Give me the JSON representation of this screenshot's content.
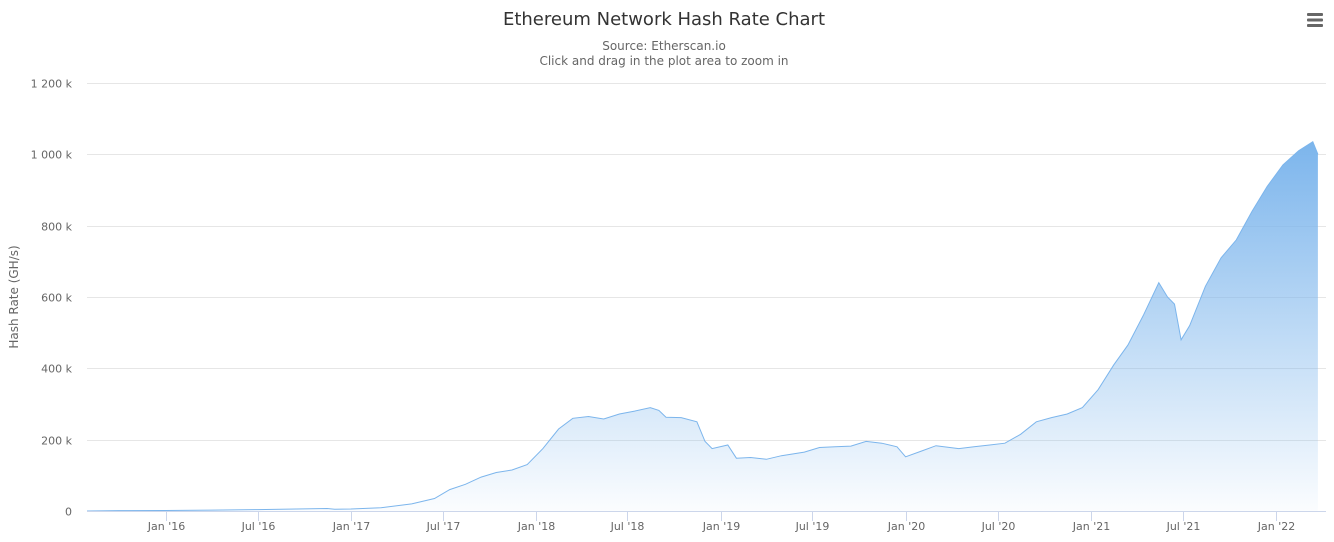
{
  "chart_data": {
    "type": "area",
    "title": "Ethereum Network Hash Rate Chart",
    "subtitle_lines": [
      "Source: Etherscan.io",
      "Click and drag in the plot area to zoom in"
    ],
    "ylabel": "Hash Rate (GH/s)",
    "xlabel": "",
    "ylim": [
      0,
      1200000
    ],
    "xlim": [
      "2015-07-30",
      "2022-04-10"
    ],
    "y_ticks": [
      {
        "value": 0,
        "label": "0"
      },
      {
        "value": 200000,
        "label": "200 k"
      },
      {
        "value": 400000,
        "label": "400 k"
      },
      {
        "value": 600000,
        "label": "600 k"
      },
      {
        "value": 800000,
        "label": "800 k"
      },
      {
        "value": 1000000,
        "label": "1 000 k"
      },
      {
        "value": 1200000,
        "label": "1 200 k"
      }
    ],
    "x_ticks": [
      {
        "date": "2016-01-01",
        "label": "Jan '16"
      },
      {
        "date": "2016-07-01",
        "label": "Jul '16"
      },
      {
        "date": "2017-01-01",
        "label": "Jan '17"
      },
      {
        "date": "2017-07-01",
        "label": "Jul '17"
      },
      {
        "date": "2018-01-01",
        "label": "Jan '18"
      },
      {
        "date": "2018-07-01",
        "label": "Jul '18"
      },
      {
        "date": "2019-01-01",
        "label": "Jan '19"
      },
      {
        "date": "2019-07-01",
        "label": "Jul '19"
      },
      {
        "date": "2020-01-01",
        "label": "Jan '20"
      },
      {
        "date": "2020-07-01",
        "label": "Jul '20"
      },
      {
        "date": "2021-01-01",
        "label": "Jan '21"
      },
      {
        "date": "2021-07-01",
        "label": "Jul '21"
      },
      {
        "date": "2022-01-01",
        "label": "Jan '22"
      }
    ],
    "series": [
      {
        "name": "Hash Rate",
        "color": "#7cb5ec",
        "points": [
          [
            "2015-07-30",
            0
          ],
          [
            "2015-10-01",
            1000
          ],
          [
            "2016-01-01",
            1500
          ],
          [
            "2016-04-01",
            2500
          ],
          [
            "2016-07-01",
            4000
          ],
          [
            "2016-10-01",
            6000
          ],
          [
            "2016-11-15",
            7000
          ],
          [
            "2016-11-30",
            5000
          ],
          [
            "2017-01-01",
            5500
          ],
          [
            "2017-03-01",
            9000
          ],
          [
            "2017-05-01",
            20000
          ],
          [
            "2017-06-15",
            35000
          ],
          [
            "2017-07-15",
            60000
          ],
          [
            "2017-08-15",
            75000
          ],
          [
            "2017-09-15",
            95000
          ],
          [
            "2017-10-15",
            108000
          ],
          [
            "2017-11-15",
            115000
          ],
          [
            "2017-12-15",
            130000
          ],
          [
            "2018-01-15",
            175000
          ],
          [
            "2018-02-15",
            230000
          ],
          [
            "2018-03-15",
            260000
          ],
          [
            "2018-04-15",
            265000
          ],
          [
            "2018-05-15",
            258000
          ],
          [
            "2018-06-15",
            272000
          ],
          [
            "2018-07-15",
            280000
          ],
          [
            "2018-08-15",
            290000
          ],
          [
            "2018-09-01",
            282000
          ],
          [
            "2018-09-15",
            263000
          ],
          [
            "2018-10-15",
            262000
          ],
          [
            "2018-11-15",
            250000
          ],
          [
            "2018-12-01",
            195000
          ],
          [
            "2018-12-15",
            175000
          ],
          [
            "2019-01-15",
            185000
          ],
          [
            "2019-02-01",
            148000
          ],
          [
            "2019-03-01",
            150000
          ],
          [
            "2019-04-01",
            145000
          ],
          [
            "2019-05-01",
            155000
          ],
          [
            "2019-06-15",
            165000
          ],
          [
            "2019-07-15",
            178000
          ],
          [
            "2019-08-15",
            180000
          ],
          [
            "2019-09-15",
            182000
          ],
          [
            "2019-10-15",
            195000
          ],
          [
            "2019-11-15",
            190000
          ],
          [
            "2019-12-15",
            180000
          ],
          [
            "2020-01-01",
            152000
          ],
          [
            "2020-02-01",
            168000
          ],
          [
            "2020-03-01",
            183000
          ],
          [
            "2020-04-15",
            175000
          ],
          [
            "2020-05-15",
            180000
          ],
          [
            "2020-06-15",
            185000
          ],
          [
            "2020-07-15",
            190000
          ],
          [
            "2020-08-15",
            215000
          ],
          [
            "2020-09-15",
            250000
          ],
          [
            "2020-10-15",
            262000
          ],
          [
            "2020-11-15",
            272000
          ],
          [
            "2020-12-15",
            290000
          ],
          [
            "2021-01-15",
            340000
          ],
          [
            "2021-02-15",
            410000
          ],
          [
            "2021-03-15",
            465000
          ],
          [
            "2021-04-15",
            550000
          ],
          [
            "2021-05-15",
            640000
          ],
          [
            "2021-06-01",
            600000
          ],
          [
            "2021-06-15",
            580000
          ],
          [
            "2021-06-28",
            480000
          ],
          [
            "2021-07-15",
            520000
          ],
          [
            "2021-08-15",
            630000
          ],
          [
            "2021-09-15",
            710000
          ],
          [
            "2021-10-15",
            760000
          ],
          [
            "2021-11-15",
            840000
          ],
          [
            "2021-12-15",
            910000
          ],
          [
            "2022-01-15",
            970000
          ],
          [
            "2022-02-15",
            1010000
          ],
          [
            "2022-03-15",
            1035000
          ],
          [
            "2022-03-25",
            1000000
          ]
        ]
      }
    ]
  }
}
